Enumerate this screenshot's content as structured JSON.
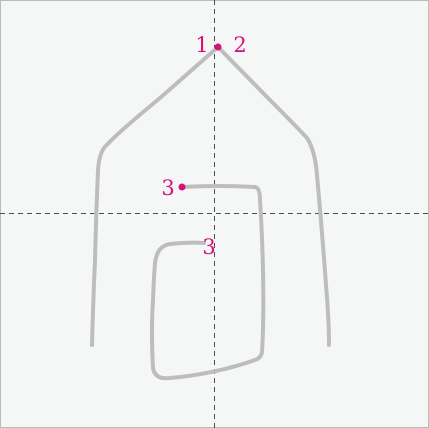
{
  "diagram": {
    "background_color": "#f5f7f6",
    "border_color": "#b9bcbb",
    "guide_color": "#4d4d4d",
    "stroke_color": "#bdbdbd",
    "accent_color": "#d6127a",
    "labels": {
      "stroke_1": "1",
      "stroke_2": "2",
      "stroke_3_start": "3",
      "stroke_3_middle": "3"
    }
  }
}
